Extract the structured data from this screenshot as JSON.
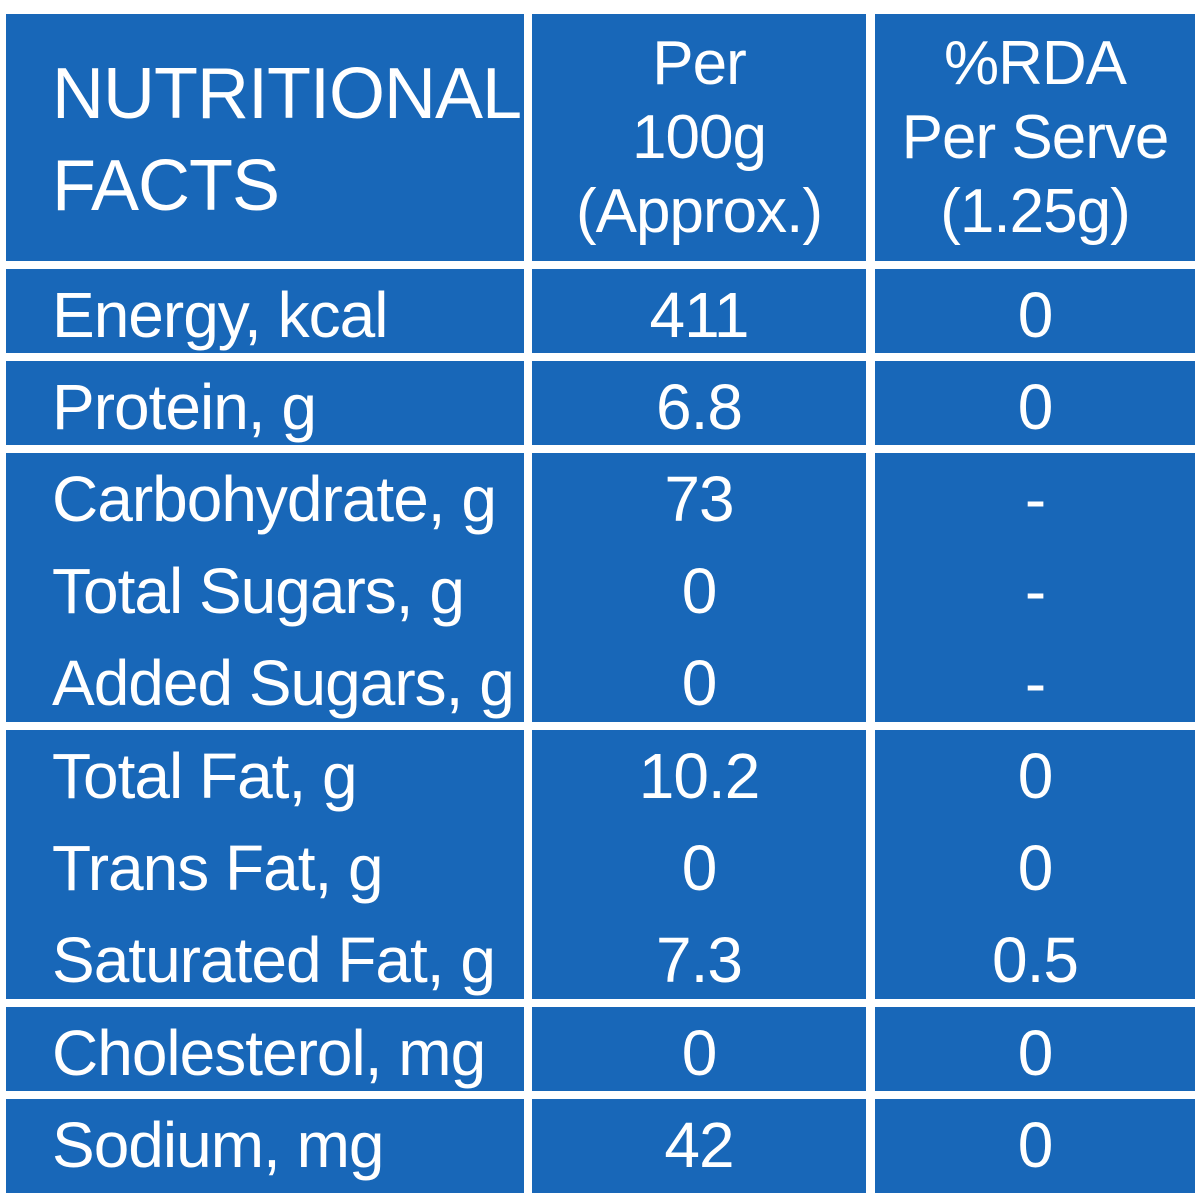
{
  "colors": {
    "background": "#ffffff",
    "cell": "#1867b8",
    "text": "#ffffff"
  },
  "header": {
    "title": "NUTRITIONAL\nFACTS",
    "per100g": "Per\n100g\n(Approx.)",
    "rda": "%RDA\nPer Serve\n(1.25g)"
  },
  "groups": [
    {
      "rows": [
        {
          "name": "Energy, kcal",
          "per100g": "411",
          "rda": "0"
        }
      ]
    },
    {
      "rows": [
        {
          "name": "Protein, g",
          "per100g": "6.8",
          "rda": "0"
        }
      ]
    },
    {
      "rows": [
        {
          "name": "Carbohydrate, g",
          "per100g": "73",
          "rda": "-"
        },
        {
          "name": "Total Sugars, g",
          "per100g": "0",
          "rda": "-"
        },
        {
          "name": "Added Sugars, g",
          "per100g": "0",
          "rda": "-"
        }
      ]
    },
    {
      "rows": [
        {
          "name": "Total Fat, g",
          "per100g": "10.2",
          "rda": "0"
        },
        {
          "name": "Trans Fat, g",
          "per100g": "0",
          "rda": "0"
        },
        {
          "name": "Saturated Fat, g",
          "per100g": "7.3",
          "rda": "0.5"
        }
      ]
    },
    {
      "rows": [
        {
          "name": "Cholesterol, mg",
          "per100g": "0",
          "rda": "0"
        }
      ]
    },
    {
      "rows": [
        {
          "name": "Sodium, mg",
          "per100g": "42",
          "rda": "0"
        }
      ]
    }
  ]
}
